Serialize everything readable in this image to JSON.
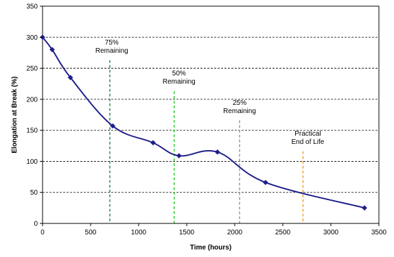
{
  "chart_data": {
    "type": "line",
    "title": "",
    "xlabel": "Time (hours)",
    "ylabel": "Elongation at Break (%)",
    "xlim": [
      0,
      3500
    ],
    "ylim": [
      0,
      350
    ],
    "xticks": [
      0,
      500,
      1000,
      1500,
      2000,
      2500,
      3000,
      3500
    ],
    "yticks": [
      0,
      50,
      100,
      150,
      200,
      250,
      300,
      350
    ],
    "grid": "horizontal-dashed",
    "legend": "none",
    "series": [
      {
        "color": "#1f1f8a",
        "marker": "diamond",
        "points": [
          {
            "x": 0,
            "y": 300
          },
          {
            "x": 100,
            "y": 280
          },
          {
            "x": 290,
            "y": 235
          },
          {
            "x": 730,
            "y": 157
          },
          {
            "x": 1150,
            "y": 130
          },
          {
            "x": 1420,
            "y": 109
          },
          {
            "x": 1820,
            "y": 115
          },
          {
            "x": 2320,
            "y": 66
          },
          {
            "x": 3350,
            "y": 25
          }
        ]
      }
    ],
    "reference_lines": [
      {
        "x": 700,
        "label_lines": [
          "75%",
          "Remaining"
        ],
        "color": "#2e8b57",
        "label_x": 720,
        "label_y": 275
      },
      {
        "x": 1370,
        "label_lines": [
          "50%",
          "Remaining"
        ],
        "color": "#33cc33",
        "label_x": 1420,
        "label_y": 225
      },
      {
        "x": 2050,
        "label_lines": [
          "25%",
          "Remaining"
        ],
        "color": "#999999",
        "label_x": 2050,
        "label_y": 178
      },
      {
        "x": 2710,
        "label_lines": [
          "Practical",
          "End of Life"
        ],
        "color": "#f0a030",
        "label_x": 2760,
        "label_y": 128
      }
    ]
  }
}
